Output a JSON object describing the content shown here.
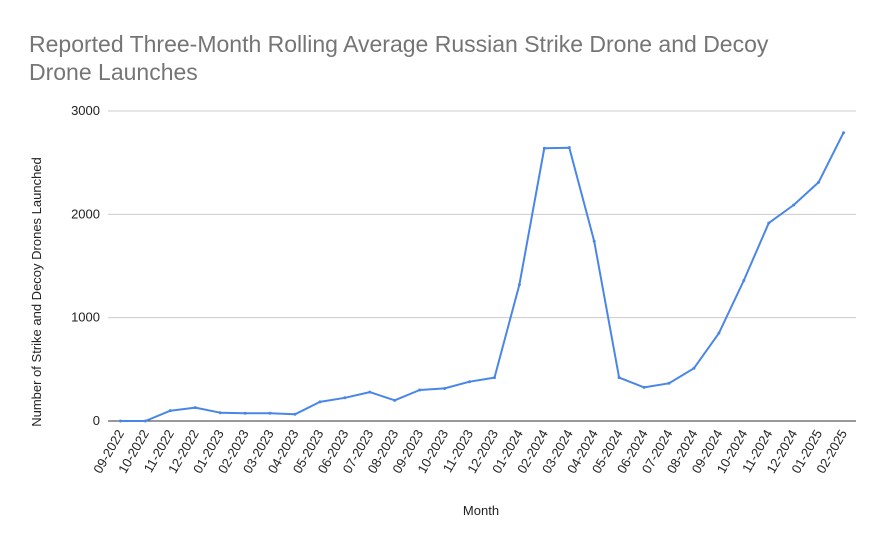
{
  "chart_data": {
    "type": "line",
    "title_lines": [
      "Reported Three-Month Rolling Average Russian Strike Drone and Decoy",
      "Drone Launches"
    ],
    "xlabel": "Month",
    "ylabel": "Number of Strike and Decoy Drones Launched",
    "ylim": [
      0,
      3000
    ],
    "yticks": [
      0,
      1000,
      2000,
      3000
    ],
    "grid": true,
    "categories": [
      "09-2022",
      "10-2022",
      "11-2022",
      "12-2022",
      "01-2023",
      "02-2023",
      "03-2023",
      "04-2023",
      "05-2023",
      "06-2023",
      "07-2023",
      "08-2023",
      "09-2023",
      "10-2023",
      "11-2023",
      "12-2023",
      "01-2024",
      "02-2024",
      "03-2024",
      "04-2024",
      "05-2024",
      "06-2024",
      "07-2024",
      "08-2024",
      "09-2024",
      "10-2024",
      "11-2024",
      "12-2024",
      "01-2025",
      "02-2025"
    ],
    "series": [
      {
        "name": "Drone Launches",
        "color": "#4a86e8",
        "values": [
          0,
          0,
          100,
          130,
          80,
          75,
          75,
          65,
          185,
          225,
          280,
          200,
          300,
          315,
          380,
          420,
          1320,
          2640,
          2645,
          1740,
          420,
          325,
          365,
          510,
          850,
          1360,
          1915,
          2090,
          2310,
          2790
        ]
      }
    ]
  }
}
